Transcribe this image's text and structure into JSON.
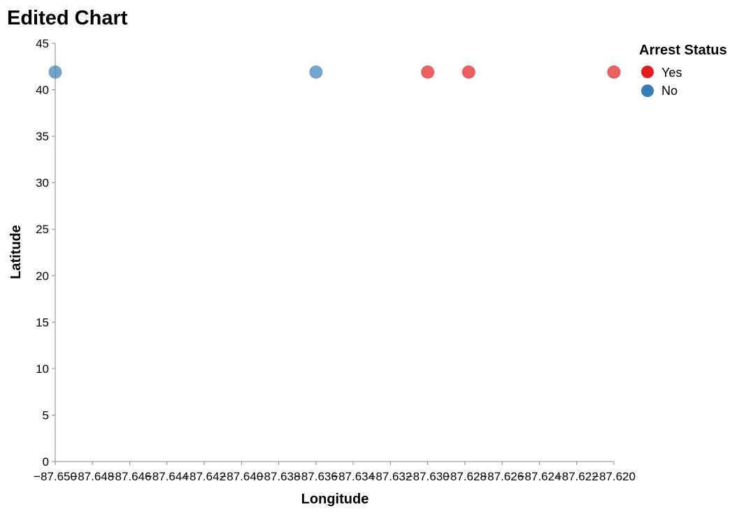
{
  "chart_data": {
    "type": "scatter",
    "title": "Edited Chart",
    "xlabel": "Longitude",
    "ylabel": "Latitude",
    "xlim": [
      -87.65,
      -87.62
    ],
    "ylim": [
      0,
      45
    ],
    "x_ticks": [
      -87.65,
      -87.648,
      -87.646,
      -87.644,
      -87.642,
      -87.64,
      -87.638,
      -87.636,
      -87.634,
      -87.632,
      -87.63,
      -87.628,
      -87.626,
      -87.624,
      -87.622,
      -87.62
    ],
    "x_tick_labels": [
      "−87.650",
      "−87.648",
      "−87.646",
      "−87.644",
      "−87.642",
      "−87.640",
      "−87.638",
      "−87.636",
      "−87.634",
      "−87.632",
      "−87.630",
      "−87.628",
      "−87.626",
      "−87.624",
      "−87.622",
      "−87.620"
    ],
    "y_ticks": [
      0,
      5,
      10,
      15,
      20,
      25,
      30,
      35,
      40,
      45
    ],
    "y_tick_labels": [
      "0",
      "5",
      "10",
      "15",
      "20",
      "25",
      "30",
      "35",
      "40",
      "45"
    ],
    "grid": false,
    "legend": {
      "title": "Arrest Status",
      "placement": "top-right",
      "entries": [
        {
          "label": "Yes",
          "color": "#e41a1c"
        },
        {
          "label": "No",
          "color": "#377eb8"
        }
      ]
    },
    "series": [
      {
        "name": "Yes",
        "color": "#e41a1c",
        "points": [
          {
            "x": -87.63,
            "y": 41.9
          },
          {
            "x": -87.6278,
            "y": 41.9
          },
          {
            "x": -87.62,
            "y": 41.9
          }
        ]
      },
      {
        "name": "No",
        "color": "#377eb8",
        "points": [
          {
            "x": -87.65,
            "y": 41.9
          },
          {
            "x": -87.636,
            "y": 41.9
          }
        ]
      }
    ]
  }
}
